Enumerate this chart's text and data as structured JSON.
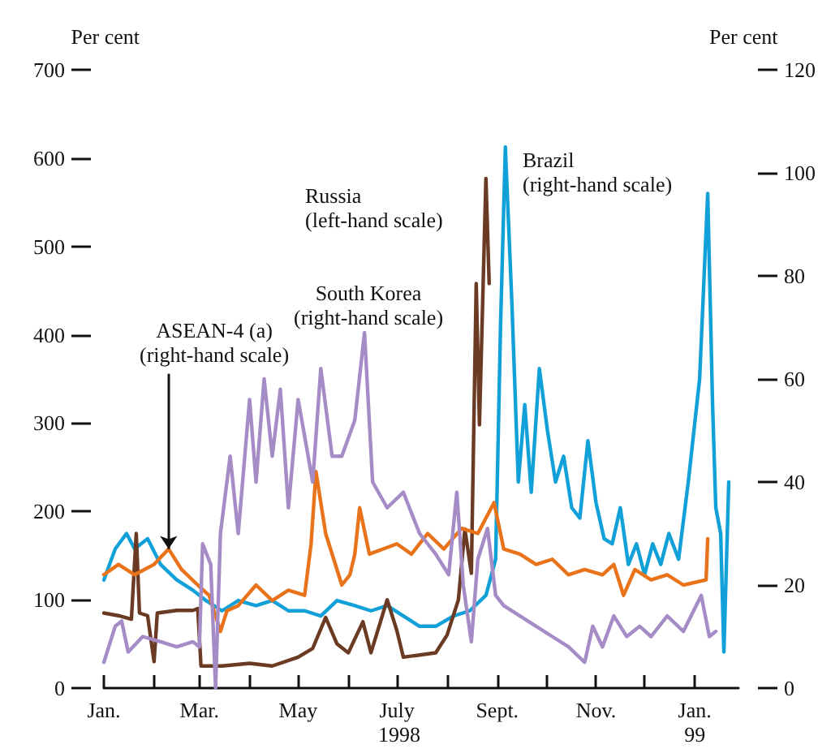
{
  "chart_data": {
    "type": "line",
    "xlabel": "1998",
    "ylabel": "Per cent",
    "y2label": "Per cent",
    "xlim": [
      "1998-01-01",
      "1999-01-28"
    ],
    "xticks": [
      {
        "value": "1998-01-01",
        "label": "Jan."
      },
      {
        "value": "1998-02-01",
        "label": null
      },
      {
        "value": "1998-03-01",
        "label": "Mar."
      },
      {
        "value": "1998-04-01",
        "label": null
      },
      {
        "value": "1998-05-01",
        "label": "May"
      },
      {
        "value": "1998-06-01",
        "label": null
      },
      {
        "value": "1998-07-01",
        "label": "July"
      },
      {
        "value": "1998-08-01",
        "label": null
      },
      {
        "value": "1998-09-01",
        "label": "Sept."
      },
      {
        "value": "1998-10-01",
        "label": null
      },
      {
        "value": "1998-11-01",
        "label": "Nov."
      },
      {
        "value": "1998-12-01",
        "label": null
      },
      {
        "value": "1999-01-01",
        "label": "Jan.\n99"
      }
    ],
    "ylim": [
      0,
      700
    ],
    "yticks": [
      0,
      100,
      200,
      300,
      400,
      500,
      600,
      700
    ],
    "y2lim": [
      0,
      120
    ],
    "y2ticks": [
      0,
      20,
      40,
      60,
      80,
      100,
      120
    ],
    "grid": false,
    "legend": false,
    "marker": "none",
    "line_style": "solid",
    "series": [
      {
        "name": "Brazil\n(right-hand scale)",
        "color": "#12a0d8",
        "axis": "y2",
        "x": [
          "1998-01-01",
          "1998-01-08",
          "1998-01-15",
          "1998-01-20",
          "1998-01-28",
          "1998-02-05",
          "1998-02-15",
          "1998-02-25",
          "1998-03-05",
          "1998-03-15",
          "1998-03-25",
          "1998-04-05",
          "1998-04-15",
          "1998-04-25",
          "1998-05-05",
          "1998-05-15",
          "1998-05-25",
          "1998-06-05",
          "1998-06-15",
          "1998-06-25",
          "1998-07-05",
          "1998-07-15",
          "1998-07-25",
          "1998-08-05",
          "1998-08-15",
          "1998-08-25",
          "1998-08-31",
          "1998-09-03",
          "1998-09-06",
          "1998-09-10",
          "1998-09-14",
          "1998-09-18",
          "1998-09-22",
          "1998-09-27",
          "1998-10-02",
          "1998-10-07",
          "1998-10-12",
          "1998-10-17",
          "1998-10-22",
          "1998-10-27",
          "1998-11-01",
          "1998-11-06",
          "1998-11-11",
          "1998-11-16",
          "1998-11-21",
          "1998-11-26",
          "1998-12-01",
          "1998-12-06",
          "1998-12-11",
          "1998-12-16",
          "1998-12-22",
          "1998-12-28",
          "1999-01-04",
          "1999-01-09",
          "1999-01-12",
          "1999-01-14",
          "1999-01-17",
          "1999-01-19",
          "1999-01-22"
        ],
        "values": [
          21,
          27,
          30,
          27,
          29,
          24,
          21,
          19,
          17,
          15,
          17,
          16,
          17,
          15,
          15,
          14,
          17,
          16,
          15,
          16,
          14,
          12,
          12,
          14,
          15,
          18,
          25,
          70,
          105,
          75,
          40,
          55,
          38,
          62,
          50,
          40,
          45,
          35,
          33,
          48,
          36,
          29,
          28,
          35,
          24,
          28,
          22,
          28,
          24,
          30,
          25,
          40,
          60,
          96,
          55,
          35,
          30,
          7,
          40
        ]
      },
      {
        "name": "Russia\n(left-hand scale)",
        "color": "#6b3a22",
        "axis": "y",
        "x": [
          "1998-01-01",
          "1998-01-10",
          "1998-01-18",
          "1998-01-21",
          "1998-01-23",
          "1998-01-28",
          "1998-02-01",
          "1998-02-03",
          "1998-02-15",
          "1998-02-25",
          "1998-02-28",
          "1998-03-02",
          "1998-03-15",
          "1998-04-01",
          "1998-04-15",
          "1998-05-01",
          "1998-05-10",
          "1998-05-18",
          "1998-05-25",
          "1998-06-01",
          "1998-06-10",
          "1998-06-15",
          "1998-06-25",
          "1998-07-01",
          "1998-07-05",
          "1998-07-25",
          "1998-08-01",
          "1998-08-08",
          "1998-08-12",
          "1998-08-16",
          "1998-08-19",
          "1998-08-21",
          "1998-08-25",
          "1998-08-27"
        ],
        "values": [
          85,
          82,
          78,
          175,
          85,
          82,
          30,
          85,
          88,
          88,
          90,
          25,
          25,
          28,
          25,
          35,
          45,
          80,
          50,
          40,
          75,
          40,
          100,
          65,
          35,
          40,
          60,
          100,
          180,
          130,
          458,
          298,
          577,
          458
        ]
      },
      {
        "name": "ASEAN-4 (a)\n(right-hand scale)",
        "color": "#e8731a",
        "axis": "y2",
        "x": [
          "1998-01-01",
          "1998-01-10",
          "1998-01-20",
          "1998-02-01",
          "1998-02-10",
          "1998-02-18",
          "1998-02-28",
          "1998-03-07",
          "1998-03-14",
          "1998-03-18",
          "1998-03-25",
          "1998-04-05",
          "1998-04-15",
          "1998-04-25",
          "1998-05-05",
          "1998-05-09",
          "1998-05-12",
          "1998-05-18",
          "1998-05-28",
          "1998-06-02",
          "1998-06-05",
          "1998-06-08",
          "1998-06-14",
          "1998-07-01",
          "1998-07-10",
          "1998-07-20",
          "1998-07-30",
          "1998-08-10",
          "1998-08-20",
          "1998-08-30",
          "1998-09-05",
          "1998-09-15",
          "1998-09-25",
          "1998-10-05",
          "1998-10-15",
          "1998-10-25",
          "1998-11-05",
          "1998-11-12",
          "1998-11-18",
          "1998-11-25",
          "1998-12-05",
          "1998-12-15",
          "1998-12-25",
          "1999-01-08",
          "1999-01-09"
        ],
        "values": [
          22,
          24,
          22,
          24,
          27,
          23,
          20,
          18,
          11,
          15,
          16,
          20,
          17,
          19,
          18,
          28,
          42,
          30,
          20,
          22,
          26,
          35,
          26,
          28,
          26,
          30,
          27,
          31,
          30,
          36,
          27,
          26,
          24,
          25,
          22,
          23,
          22,
          24,
          18,
          23,
          21,
          22,
          20,
          21,
          29
        ]
      },
      {
        "name": "South Korea\n(right-hand scale)",
        "color": "#a58cc7",
        "axis": "y2",
        "x": [
          "1998-01-01",
          "1998-01-08",
          "1998-01-12",
          "1998-01-16",
          "1998-01-25",
          "1998-02-05",
          "1998-02-15",
          "1998-02-25",
          "1998-03-01",
          "1998-03-03",
          "1998-03-08",
          "1998-03-11",
          "1998-03-14",
          "1998-03-20",
          "1998-03-25",
          "1998-04-01",
          "1998-04-05",
          "1998-04-10",
          "1998-04-15",
          "1998-04-20",
          "1998-04-25",
          "1998-05-01",
          "1998-05-10",
          "1998-05-15",
          "1998-05-22",
          "1998-05-28",
          "1998-06-05",
          "1998-06-11",
          "1998-06-16",
          "1998-06-25",
          "1998-07-05",
          "1998-07-15",
          "1998-07-25",
          "1998-08-02",
          "1998-08-07",
          "1998-08-11",
          "1998-08-16",
          "1998-08-20",
          "1998-08-26",
          "1998-08-31",
          "1998-09-05",
          "1998-09-15",
          "1998-09-25",
          "1998-10-05",
          "1998-10-15",
          "1998-10-25",
          "1998-10-30",
          "1998-11-05",
          "1998-11-12",
          "1998-11-20",
          "1998-11-28",
          "1998-12-05",
          "1998-12-15",
          "1998-12-25",
          "1999-01-05",
          "1999-01-10",
          "1999-01-14"
        ],
        "values": [
          5,
          12,
          13,
          7,
          10,
          9,
          8,
          9,
          8,
          28,
          24,
          0,
          30,
          45,
          30,
          56,
          40,
          60,
          45,
          58,
          35,
          56,
          40,
          62,
          45,
          45,
          52,
          69,
          40,
          35,
          38,
          30,
          26,
          22,
          38,
          20,
          9,
          25,
          31,
          18,
          16,
          14,
          12,
          10,
          8,
          5,
          12,
          8,
          14,
          10,
          12,
          10,
          14,
          11,
          18,
          10,
          11
        ]
      }
    ]
  }
}
